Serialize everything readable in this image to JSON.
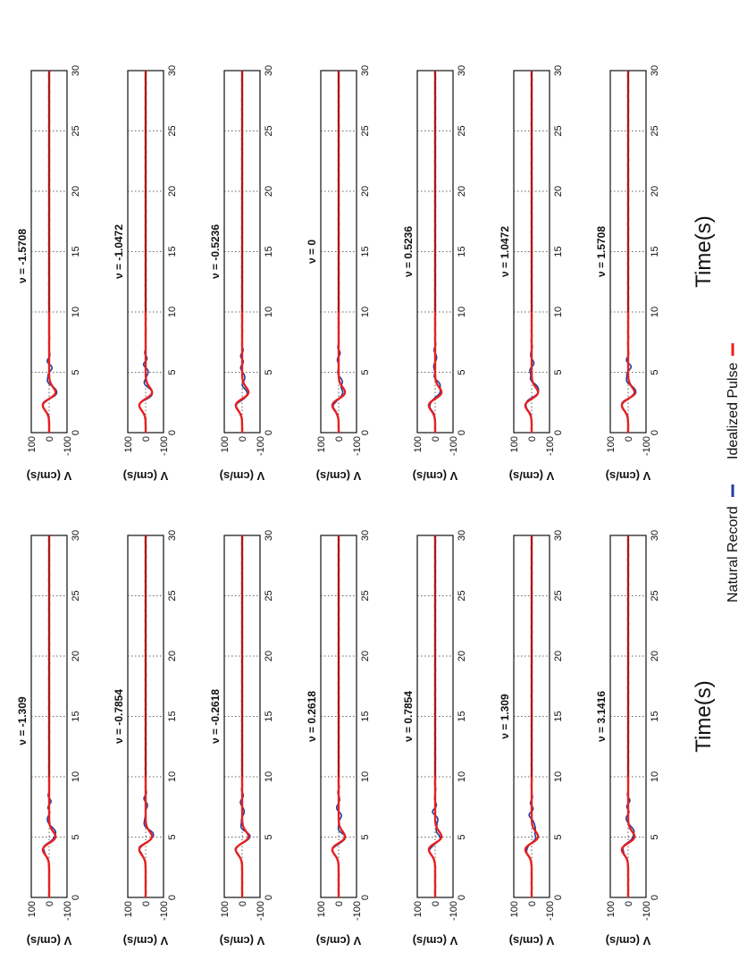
{
  "chart_data": {
    "type": "line",
    "xlabel": "Time(s)",
    "ylabel": "V (cm/s)",
    "xlim": [
      0,
      30
    ],
    "ylim": [
      -100,
      100
    ],
    "x_ticks": [
      "0",
      "5",
      "10",
      "15",
      "20",
      "25",
      "30"
    ],
    "y_ticks": [
      "-100",
      "0",
      "100"
    ],
    "grid": true,
    "orientation": "figure rotated 90 degrees counter-clockwise",
    "legend": {
      "placement": "bottom-right",
      "entries": [
        {
          "label": "Natural Record",
          "color": "#1f3fa0"
        },
        {
          "label": "Idealized Pulse",
          "color": "#e8201f"
        }
      ]
    },
    "colors": {
      "natural": "#1f3fa0",
      "pulse": "#e8201f"
    },
    "series_defs": [
      {
        "name": "Natural Record",
        "color": "#1f3fa0"
      },
      {
        "name": "Idealized Pulse",
        "color": "#e8201f"
      }
    ],
    "columns": [
      {
        "panels": [
          {
            "title": "ν = -1.309",
            "pulse_center": 4.5,
            "pulse_amp": 45
          },
          {
            "title": "ν = -0.7854",
            "pulse_center": 4.5,
            "pulse_amp": 45
          },
          {
            "title": "ν = -0.2618",
            "pulse_center": 4.5,
            "pulse_amp": 45
          },
          {
            "title": "ν = 0.2618",
            "pulse_center": 4.5,
            "pulse_amp": 45
          },
          {
            "title": "ν = 0.7854",
            "pulse_center": 4.5,
            "pulse_amp": 45
          },
          {
            "title": "ν = 1.309",
            "pulse_center": 4.5,
            "pulse_amp": 45
          },
          {
            "title": "ν = 3.1416",
            "pulse_center": 4.5,
            "pulse_amp": 45
          }
        ]
      },
      {
        "panels": [
          {
            "title": "ν = -1.5708",
            "pulse_center": 2.8,
            "pulse_amp": 45
          },
          {
            "title": "ν = -1.0472",
            "pulse_center": 2.8,
            "pulse_amp": 45
          },
          {
            "title": "ν = -0.5236",
            "pulse_center": 2.8,
            "pulse_amp": 45
          },
          {
            "title": "ν = 0",
            "pulse_center": 2.8,
            "pulse_amp": 45
          },
          {
            "title": "ν = 0.5236",
            "pulse_center": 2.8,
            "pulse_amp": 45
          },
          {
            "title": "ν = 1.0472",
            "pulse_center": 2.8,
            "pulse_amp": 45
          },
          {
            "title": "ν = 1.5708",
            "pulse_center": 2.8,
            "pulse_amp": 45
          }
        ]
      }
    ]
  }
}
